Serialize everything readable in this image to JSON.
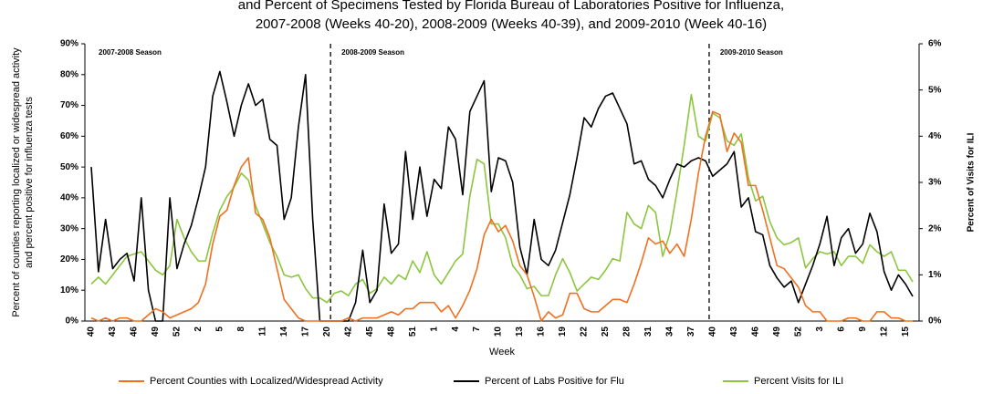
{
  "chart_data": {
    "type": "line",
    "title": "and Percent of Specimens Tested by Florida Bureau of Laboratories Positive for Influenza,",
    "subtitle": "2007-2008 (Weeks 40-20), 2008-2009 (Weeks 40-39), and 2009-2010 (Week 40-16)",
    "xlabel": "Week",
    "ylabel": [
      "Percent of counties reporting localized or widespread activity",
      "and percent positive for influenza tests"
    ],
    "y2label": "Percent of Visits for ILI",
    "annotations": [
      "2007-2008 Season",
      "2008-2009 Season",
      "2009-2010 Season"
    ],
    "categories": [
      "40",
      null,
      null,
      "43",
      null,
      null,
      "46",
      null,
      null,
      "49",
      null,
      null,
      "52",
      null,
      null,
      "2",
      null,
      null,
      "5",
      null,
      null,
      "8",
      null,
      null,
      "11",
      null,
      null,
      "14",
      null,
      null,
      "17",
      null,
      null,
      "20",
      null,
      null,
      "42",
      null,
      null,
      "45",
      null,
      null,
      "48",
      null,
      null,
      "51",
      null,
      null,
      "1",
      null,
      null,
      "4",
      null,
      null,
      "7",
      null,
      null,
      "10",
      null,
      null,
      "13",
      null,
      null,
      "16",
      null,
      null,
      "19",
      null,
      null,
      "22",
      null,
      null,
      "25",
      null,
      null,
      "28",
      null,
      null,
      "31",
      null,
      null,
      "34",
      null,
      null,
      "37",
      null,
      null,
      "40",
      null,
      null,
      "43",
      null,
      null,
      "46",
      null,
      null,
      "49",
      null,
      null,
      "52",
      null,
      null,
      "3",
      null,
      null,
      "6",
      null,
      null,
      "9",
      null,
      null,
      "12",
      null,
      null,
      "15",
      null
    ],
    "series": [
      {
        "name": "Percent Counties with Localized/Widespread Activity",
        "color": "#f07020",
        "axis": "y",
        "values": [
          1,
          0,
          1,
          0,
          1,
          1,
          0,
          0,
          2,
          4,
          3,
          1,
          2,
          3,
          4,
          6,
          12,
          25,
          34,
          36,
          44,
          50,
          53,
          35,
          33,
          27,
          17,
          7,
          4,
          1,
          0,
          0,
          0,
          0,
          0,
          0,
          1,
          0,
          1,
          1,
          1,
          2,
          3,
          2,
          4,
          4,
          6,
          6,
          6,
          3,
          5,
          1,
          5,
          10,
          17,
          28,
          33,
          29,
          31,
          26,
          18,
          15,
          8,
          0,
          3,
          1,
          2,
          9,
          9,
          4,
          3,
          3,
          5,
          7,
          7,
          6,
          12,
          19,
          27,
          25,
          26,
          22,
          25,
          21,
          33,
          48,
          60,
          68,
          67,
          55,
          61,
          58,
          44,
          44,
          36,
          27,
          18,
          17,
          14,
          11,
          5,
          3,
          3,
          0,
          0,
          0,
          1,
          1,
          0,
          0,
          3,
          3,
          1,
          1,
          0,
          0
        ]
      },
      {
        "name": "Percent of Labs Positive for Flu",
        "color": "#000000",
        "axis": "y",
        "values": [
          50,
          16,
          33,
          17,
          20,
          22,
          13,
          40,
          10,
          0,
          0,
          40,
          17,
          25,
          31,
          40,
          50,
          73,
          81,
          71,
          60,
          70,
          77,
          70,
          72,
          59,
          57,
          33,
          40,
          63,
          80,
          33,
          0,
          0,
          0,
          0,
          0,
          6,
          23,
          6,
          10,
          38,
          22,
          25,
          55,
          33,
          50,
          34,
          46,
          43,
          63,
          59,
          41,
          68,
          73,
          78,
          42,
          53,
          52,
          45,
          24,
          15,
          33,
          20,
          18,
          23,
          32,
          41,
          53,
          66,
          63,
          69,
          73,
          74,
          69,
          64,
          51,
          52,
          46,
          44,
          40,
          46,
          51,
          50,
          52,
          53,
          52,
          47,
          49,
          51,
          55,
          37,
          40,
          29,
          28,
          18,
          14,
          11,
          13,
          6,
          12,
          18,
          25,
          34,
          18,
          27,
          30,
          22,
          25,
          35,
          29,
          16,
          10,
          15,
          12,
          8
        ]
      },
      {
        "name": "Percent Visits for ILI",
        "color": "#8cc63f",
        "axis": "y2",
        "values": [
          0.8,
          0.95,
          0.8,
          1.0,
          1.2,
          1.4,
          1.45,
          1.5,
          1.3,
          1.1,
          1.0,
          1.2,
          2.2,
          1.8,
          1.5,
          1.3,
          1.3,
          1.9,
          2.4,
          2.7,
          2.9,
          3.2,
          3.05,
          2.5,
          2.1,
          1.7,
          1.4,
          1.0,
          0.95,
          1.0,
          0.7,
          0.5,
          0.5,
          0.4,
          0.6,
          0.65,
          0.55,
          0.8,
          0.9,
          0.6,
          0.7,
          0.95,
          0.8,
          1.0,
          0.9,
          1.3,
          1.05,
          1.5,
          1.0,
          0.8,
          1.05,
          1.3,
          1.45,
          2.7,
          3.5,
          3.4,
          2.1,
          2.1,
          1.8,
          1.2,
          1.0,
          0.7,
          0.75,
          0.55,
          0.55,
          1.0,
          1.35,
          1.05,
          0.65,
          0.8,
          0.95,
          0.9,
          1.1,
          1.35,
          1.3,
          2.35,
          2.1,
          2.0,
          2.5,
          2.35,
          1.4,
          1.9,
          2.8,
          3.8,
          4.9,
          4.0,
          3.9,
          4.5,
          4.4,
          3.9,
          3.8,
          4.05,
          3.1,
          2.6,
          2.7,
          2.15,
          1.8,
          1.65,
          1.7,
          1.8,
          1.15,
          1.35,
          1.5,
          1.45,
          1.5,
          1.2,
          1.4,
          1.4,
          1.25,
          1.65,
          1.5,
          1.4,
          1.5,
          1.1,
          1.1,
          0.85
        ]
      }
    ],
    "ylim": [
      0,
      90
    ],
    "yticks": [
      {
        "value": 0,
        "label": "0%"
      },
      {
        "value": 10,
        "label": "10%"
      },
      {
        "value": 20,
        "label": "20%"
      },
      {
        "value": 30,
        "label": "30%"
      },
      {
        "value": 40,
        "label": "40%"
      },
      {
        "value": 50,
        "label": "50%"
      },
      {
        "value": 60,
        "label": "60%"
      },
      {
        "value": 70,
        "label": "70%"
      },
      {
        "value": 80,
        "label": "80%"
      },
      {
        "value": 90,
        "label": "90%"
      }
    ],
    "y2lim": [
      0,
      6
    ],
    "y2ticks": [
      {
        "value": 0,
        "label": "0%"
      },
      {
        "value": 1,
        "label": "1%"
      },
      {
        "value": 2,
        "label": "2%"
      },
      {
        "value": 3,
        "label": "3%"
      },
      {
        "value": 4,
        "label": "4%"
      },
      {
        "value": 5,
        "label": "5%"
      },
      {
        "value": 6,
        "label": "6%"
      }
    ],
    "grid": false,
    "legend": "bottom"
  }
}
